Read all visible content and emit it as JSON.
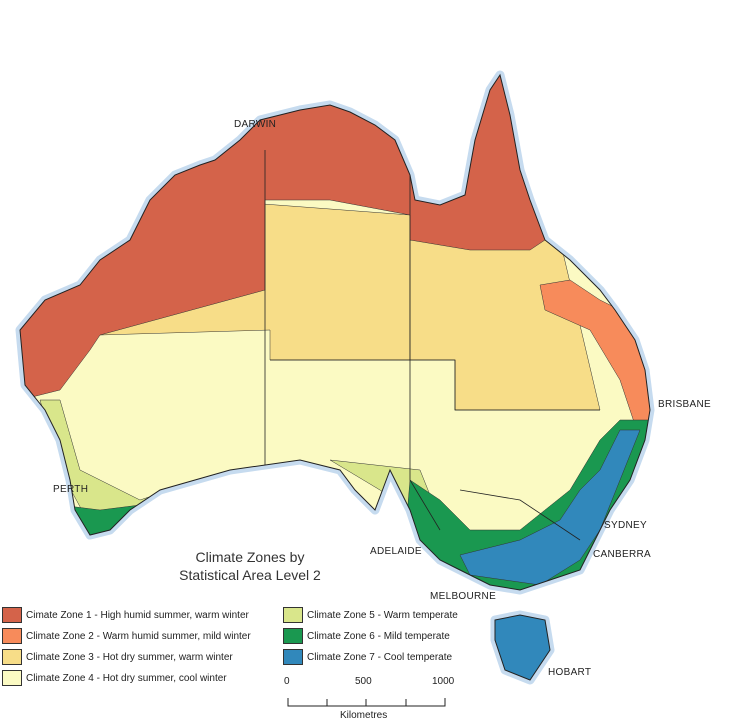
{
  "title": [
    "Climate Zones by",
    "Statistical Area Level 2"
  ],
  "cities": {
    "darwin": "DARWIN",
    "brisbane": "BRISBANE",
    "perth": "PERTH",
    "sydney": "SYDNEY",
    "adelaide": "ADELAIDE",
    "canberra": "CANBERRA",
    "melbourne": "MELBOURNE",
    "hobart": "HOBART"
  },
  "legend": [
    {
      "label": "Cimate Zone 1 - High humid summer, warm winter",
      "color": "#d4634a"
    },
    {
      "label": "Climate Zone 2 - Warm humid summer, mild winter",
      "color": "#f78b5b"
    },
    {
      "label": "Climate Zone 3 - Hot dry summer, warm winter",
      "color": "#f7dd88"
    },
    {
      "label": "Climate Zone 4 - Hot dry summer, cool winter",
      "color": "#fbfac3"
    },
    {
      "label": "Climate Zone 5 - Warm temperate",
      "color": "#d9e68b"
    },
    {
      "label": "Climate Zone 6 - Mild temperate",
      "color": "#1a9850"
    },
    {
      "label": "Climate Zone 7 - Cool temperate",
      "color": "#3188bb"
    }
  ],
  "scale": {
    "ticks": [
      "0",
      "500",
      "1000"
    ],
    "unit": "Kilometres"
  },
  "colors": {
    "coast_halo": "#c6dbef",
    "boundary": "#222222"
  }
}
